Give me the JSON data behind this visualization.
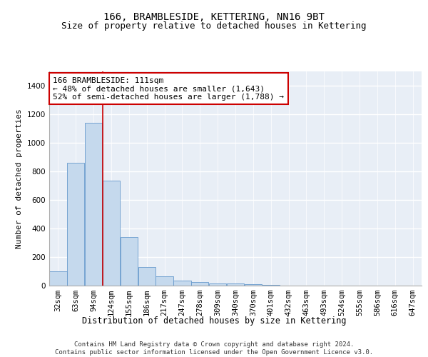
{
  "title": "166, BRAMBLESIDE, KETTERING, NN16 9BT",
  "subtitle": "Size of property relative to detached houses in Kettering",
  "xlabel": "Distribution of detached houses by size in Kettering",
  "ylabel": "Number of detached properties",
  "bar_color": "#c5d9ed",
  "bar_edge_color": "#6699cc",
  "background_color": "#e8eef6",
  "grid_color": "#ffffff",
  "annotation_box_color": "#cc0000",
  "vline_color": "#cc0000",
  "footer": "Contains HM Land Registry data © Crown copyright and database right 2024.\nContains public sector information licensed under the Open Government Licence v3.0.",
  "bins": [
    "32sqm",
    "63sqm",
    "94sqm",
    "124sqm",
    "155sqm",
    "186sqm",
    "217sqm",
    "247sqm",
    "278sqm",
    "309sqm",
    "340sqm",
    "370sqm",
    "401sqm",
    "432sqm",
    "463sqm",
    "493sqm",
    "524sqm",
    "555sqm",
    "586sqm",
    "616sqm",
    "647sqm"
  ],
  "values": [
    100,
    860,
    1140,
    735,
    340,
    130,
    65,
    35,
    25,
    15,
    15,
    10,
    5,
    0,
    0,
    0,
    0,
    0,
    0,
    0,
    0
  ],
  "property_bin_index": 2.5,
  "annotation_text": "166 BRAMBLESIDE: 111sqm\n← 48% of detached houses are smaller (1,643)\n52% of semi-detached houses are larger (1,788) →",
  "ylim": [
    0,
    1500
  ],
  "yticks": [
    0,
    200,
    400,
    600,
    800,
    1000,
    1200,
    1400
  ],
  "title_fontsize": 10,
  "subtitle_fontsize": 9,
  "xlabel_fontsize": 8.5,
  "ylabel_fontsize": 8,
  "tick_fontsize": 7.5,
  "annotation_fontsize": 8,
  "footer_fontsize": 6.5
}
